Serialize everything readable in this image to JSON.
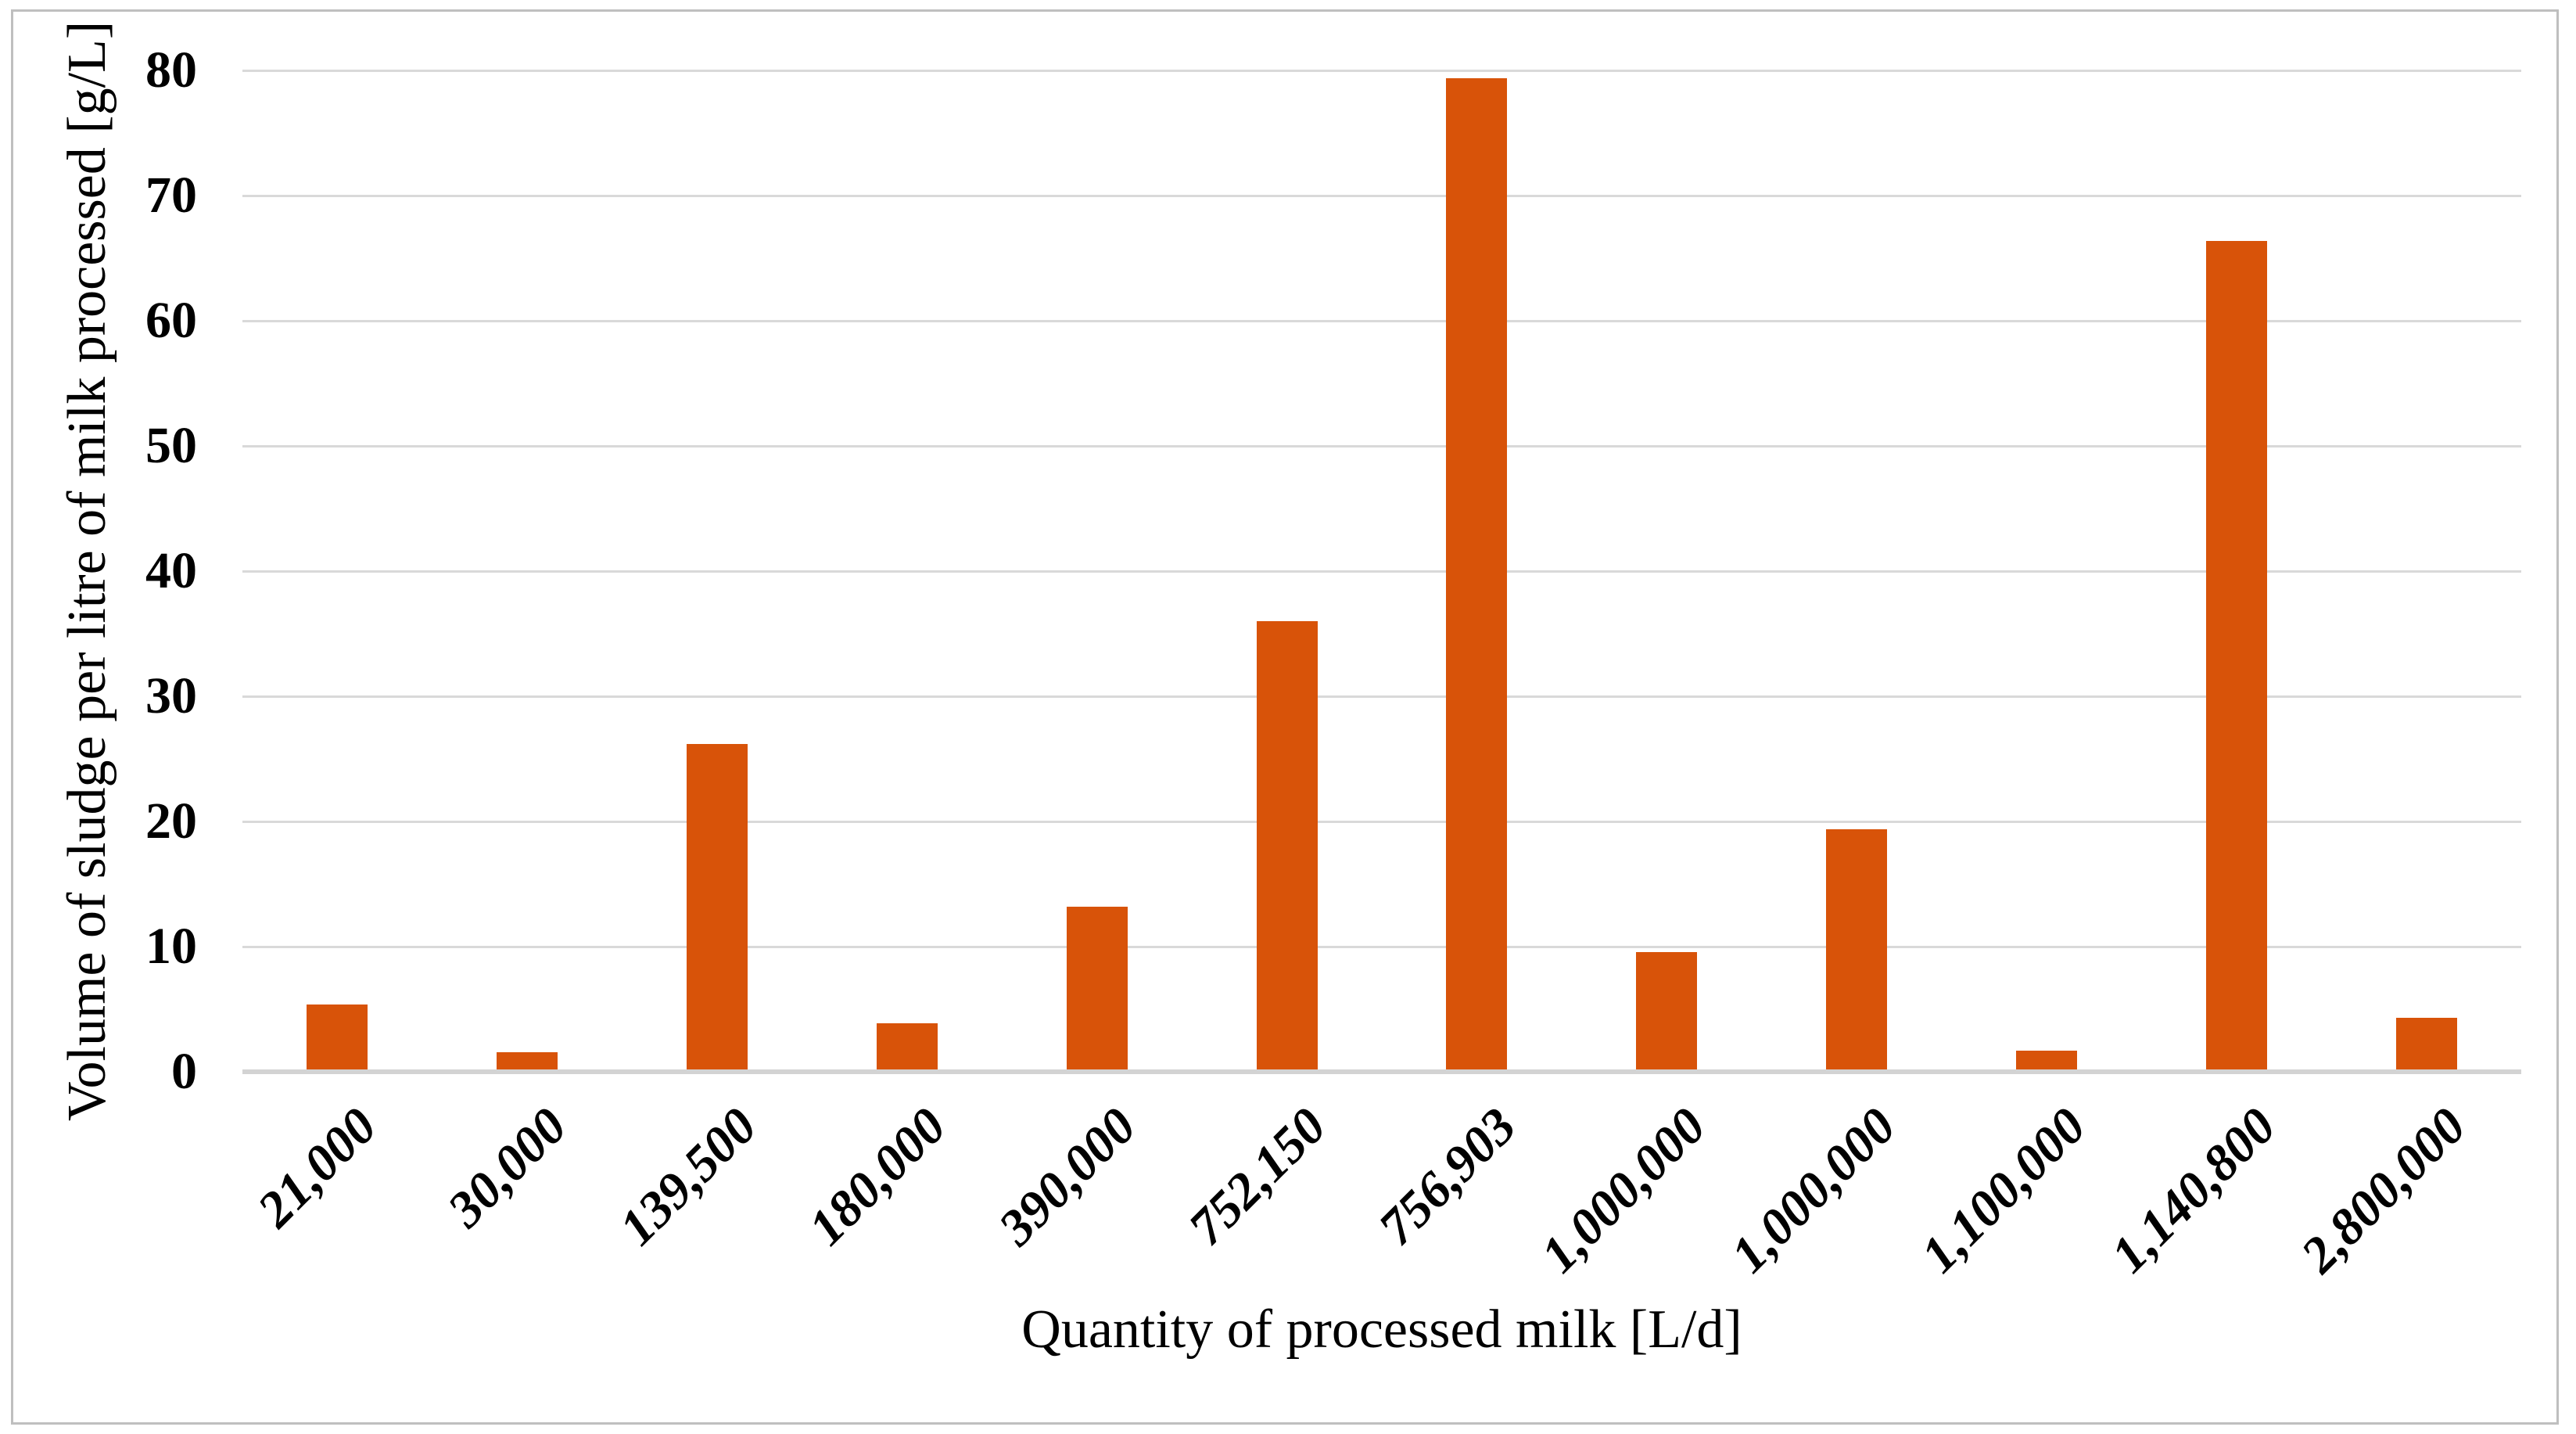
{
  "chart_data": {
    "type": "bar",
    "title": "",
    "categories": [
      "21,000",
      "30,000",
      "139,500",
      "180,000",
      "390,000",
      "752,150",
      "756,903",
      "1,000,000",
      "1,000,000",
      "1,100,000",
      "1,140,800",
      "2,800,000"
    ],
    "values": [
      5.2,
      1.4,
      26.0,
      3.7,
      13.0,
      35.8,
      79.2,
      9.4,
      19.2,
      1.5,
      66.2,
      4.1
    ],
    "xlabel": "Quantity of processed milk [L/d]",
    "ylabel": "Volume of sludge per litre of milk processed [g/L]",
    "ylim": [
      0,
      80
    ],
    "ytick_step": 10,
    "yticks": [
      "0",
      "10",
      "20",
      "30",
      "40",
      "50",
      "60",
      "70",
      "80"
    ],
    "grid": true,
    "legend_position": "none",
    "bar_color": "#D85309",
    "gridline_color": "#D9D9D9",
    "axis_line_color": "#D3D3D3",
    "border_color": "#BFBFBF",
    "text_color": "#000000"
  }
}
